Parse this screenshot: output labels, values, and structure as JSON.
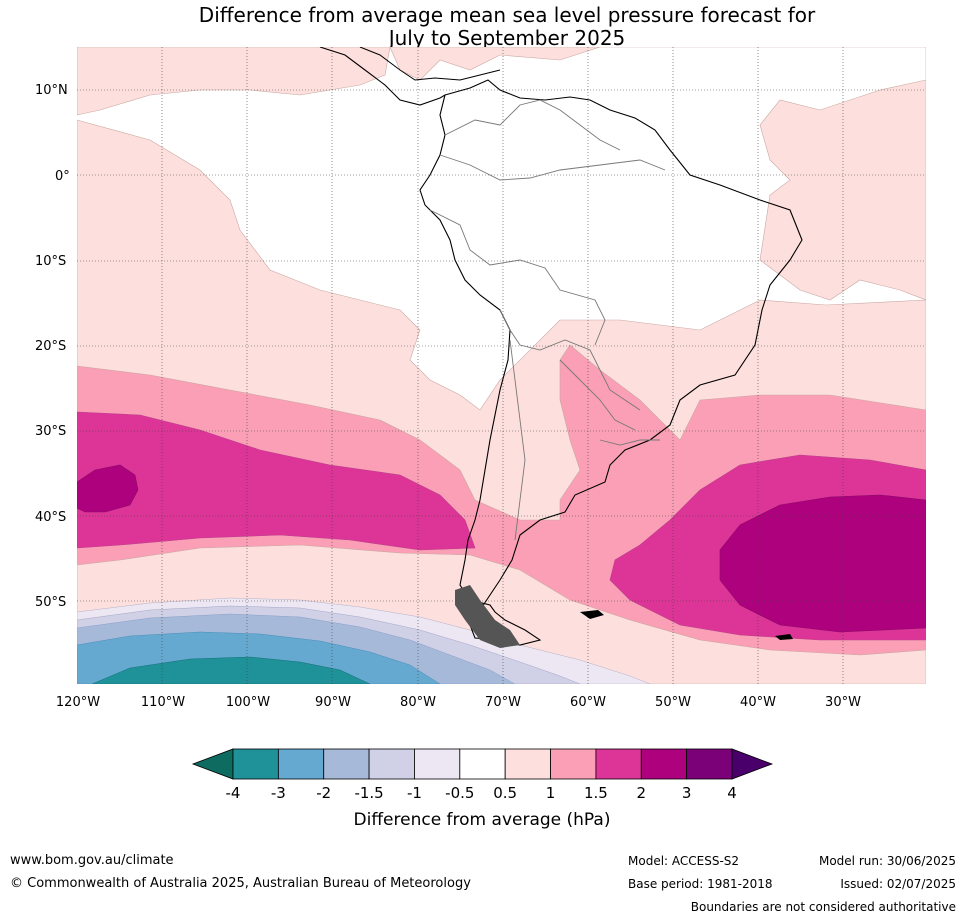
{
  "title": {
    "line1": "Difference from average mean sea level pressure forecast for",
    "line2": "July to September 2025"
  },
  "map": {
    "lat_labels": [
      "10°N",
      "0°",
      "10°S",
      "20°S",
      "30°S",
      "40°S",
      "50°S"
    ],
    "lon_labels": [
      "120°W",
      "110°W",
      "100°W",
      "90°W",
      "80°W",
      "70°W",
      "60°W",
      "50°W",
      "40°W",
      "30°W"
    ]
  },
  "colorbar": {
    "title": "Difference from average (hPa)",
    "tick_labels": [
      "-4",
      "-3",
      "-2",
      "-1.5",
      "-1",
      "-0.5",
      "0.5",
      "1",
      "1.5",
      "2",
      "3",
      "4"
    ],
    "colors": [
      "#0d6b5f",
      "#1e9199",
      "#65a9d1",
      "#a6b9d8",
      "#d0d1e6",
      "#ece7f2",
      "#ffffff",
      "#fde0dd",
      "#fa9fb5",
      "#dd3497",
      "#ae017e",
      "#7a0177",
      "#49006a"
    ]
  },
  "footer": {
    "website": "www.bom.gov.au/climate",
    "copyright": "© Commonwealth of Australia 2025, Australian Bureau of Meteorology",
    "model": "Model: ACCESS-S2",
    "base_period": "Base period: 1981-2018",
    "model_run": "Model run: 30/06/2025",
    "issued": "Issued: 02/07/2025",
    "disclaimer": "Boundaries are not considered authoritative"
  }
}
